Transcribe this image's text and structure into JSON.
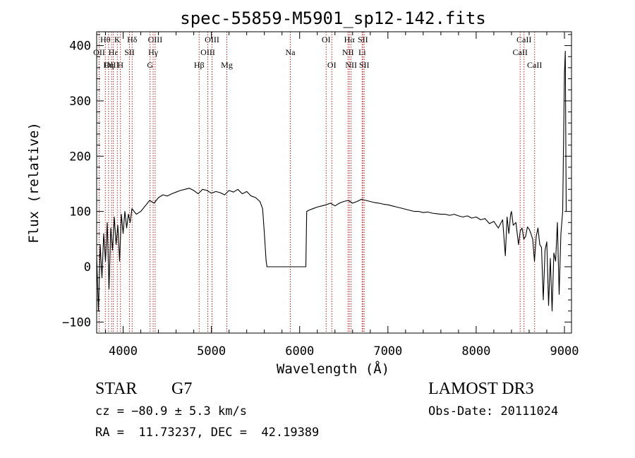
{
  "chart_data": {
    "type": "line",
    "title": "spec-55859-M5901_sp12-142.fits",
    "xlabel": "Wavelength (Å)",
    "ylabel": "Flux (relative)",
    "xlim": [
      3700,
      9080
    ],
    "ylim": [
      -120,
      425
    ],
    "xticks": [
      4000,
      5000,
      6000,
      7000,
      8000,
      9000
    ],
    "yticks": [
      -100,
      0,
      100,
      200,
      300,
      400
    ],
    "grid": false,
    "series": [
      {
        "color": "#000000",
        "x": [
          3700,
          3720,
          3740,
          3760,
          3780,
          3800,
          3820,
          3840,
          3860,
          3880,
          3900,
          3920,
          3940,
          3960,
          3980,
          4000,
          4020,
          4040,
          4060,
          4080,
          4100,
          4150,
          4200,
          4250,
          4300,
          4350,
          4400,
          4450,
          4500,
          4550,
          4600,
          4650,
          4700,
          4750,
          4800,
          4850,
          4900,
          4950,
          5000,
          5050,
          5100,
          5150,
          5200,
          5250,
          5300,
          5350,
          5400,
          5450,
          5500,
          5550,
          5580,
          5600,
          5620,
          5630,
          5640,
          5700,
          5800,
          5900,
          6000,
          6050,
          6070,
          6080,
          6100,
          6150,
          6200,
          6250,
          6300,
          6350,
          6400,
          6450,
          6500,
          6550,
          6600,
          6650,
          6700,
          6750,
          6800,
          6850,
          6900,
          6950,
          7000,
          7050,
          7100,
          7150,
          7200,
          7250,
          7300,
          7350,
          7400,
          7450,
          7500,
          7550,
          7600,
          7650,
          7700,
          7750,
          7800,
          7850,
          7900,
          7950,
          8000,
          8050,
          8100,
          8150,
          8200,
          8250,
          8300,
          8330,
          8350,
          8370,
          8390,
          8400,
          8420,
          8450,
          8480,
          8500,
          8520,
          8540,
          8560,
          8580,
          8600,
          8620,
          8640,
          8660,
          8680,
          8700,
          8720,
          8740,
          8760,
          8780,
          8800,
          8820,
          8840,
          8860,
          8880,
          8900,
          8920,
          8940,
          8960,
          8980,
          9000,
          9010,
          9020
        ],
        "values": [
          20,
          -80,
          40,
          -20,
          60,
          10,
          80,
          -40,
          70,
          30,
          90,
          40,
          75,
          10,
          95,
          60,
          100,
          70,
          95,
          80,
          105,
          95,
          100,
          110,
          120,
          115,
          125,
          130,
          128,
          132,
          135,
          138,
          140,
          142,
          138,
          132,
          140,
          138,
          133,
          136,
          134,
          130,
          138,
          135,
          140,
          132,
          136,
          128,
          125,
          118,
          105,
          60,
          10,
          0,
          0,
          0,
          0,
          0,
          0,
          0,
          0,
          100,
          102,
          105,
          108,
          110,
          112,
          115,
          110,
          115,
          118,
          120,
          115,
          118,
          122,
          120,
          118,
          116,
          115,
          113,
          112,
          110,
          108,
          106,
          104,
          102,
          100,
          100,
          98,
          99,
          97,
          96,
          95,
          95,
          93,
          95,
          92,
          90,
          92,
          88,
          90,
          85,
          87,
          78,
          82,
          70,
          85,
          20,
          90,
          60,
          95,
          100,
          75,
          80,
          40,
          65,
          70,
          50,
          55,
          72,
          68,
          60,
          50,
          10,
          55,
          70,
          40,
          35,
          -60,
          30,
          45,
          -70,
          15,
          -80,
          25,
          10,
          80,
          -50,
          60,
          100,
          350,
          390,
          100
        ]
      }
    ],
    "annotations": [
      {
        "label": "Hθ",
        "x": 3798,
        "row": 0
      },
      {
        "label": "OII",
        "x": 3728,
        "row": 1
      },
      {
        "label": "Hε",
        "x": 3889,
        "row": 1
      },
      {
        "label": "OIII",
        "x": 3869,
        "row": 2
      },
      {
        "label": "Hη",
        "x": 3835,
        "row": 2
      },
      {
        "label": "K",
        "x": 3934,
        "row": 0
      },
      {
        "label": "H",
        "x": 3969,
        "row": 2
      },
      {
        "label": "SII",
        "x": 4072,
        "row": 1
      },
      {
        "label": "Hδ",
        "x": 4102,
        "row": 0
      },
      {
        "label": "OIII",
        "x": 4363,
        "row": 0
      },
      {
        "label": "Hγ",
        "x": 4340,
        "row": 1
      },
      {
        "label": "G",
        "x": 4305,
        "row": 2
      },
      {
        "label": "OIII",
        "x": 5007,
        "row": 0
      },
      {
        "label": "OIII",
        "x": 4959,
        "row": 1
      },
      {
        "label": "Hβ",
        "x": 4861,
        "row": 2
      },
      {
        "label": "Mg",
        "x": 5175,
        "row": 2
      },
      {
        "label": "Na",
        "x": 5894,
        "row": 1
      },
      {
        "label": "OI",
        "x": 6300,
        "row": 0
      },
      {
        "label": "OI",
        "x": 6364,
        "row": 2
      },
      {
        "label": "Hα",
        "x": 6563,
        "row": 0
      },
      {
        "label": "SII",
        "x": 6716,
        "row": 0
      },
      {
        "label": "NII",
        "x": 6548,
        "row": 1
      },
      {
        "label": "Li",
        "x": 6708,
        "row": 1
      },
      {
        "label": "NII",
        "x": 6583,
        "row": 2
      },
      {
        "label": "SII",
        "x": 6731,
        "row": 2
      },
      {
        "label": "CaII",
        "x": 8542,
        "row": 0
      },
      {
        "label": "CaII",
        "x": 8498,
        "row": 1
      },
      {
        "label": "CaII",
        "x": 8662,
        "row": 2
      }
    ],
    "line_marker_color": "#b22222"
  },
  "info": {
    "object_class": "STAR",
    "subclass": "G7",
    "cz": "cz = −80.9 ± 5.3 km/s",
    "coords": "RA =  11.73237, DEC =  42.19389",
    "survey": "LAMOST DR3",
    "obs_date": "Obs-Date: 20111024"
  }
}
